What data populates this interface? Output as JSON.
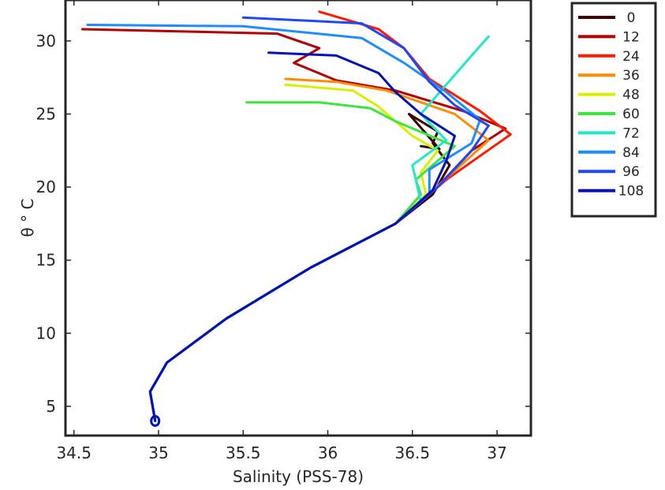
{
  "chart_data": {
    "type": "line",
    "title": "",
    "xlabel": "Salinity (PSS-78)",
    "ylabel": "θ ° C",
    "xlim": [
      34.45,
      37.2
    ],
    "ylim": [
      3.0,
      32.8
    ],
    "xticks": [
      34.5,
      35,
      35.5,
      36,
      36.5,
      37
    ],
    "yticks": [
      5,
      10,
      15,
      20,
      25,
      30
    ],
    "xtick_labels": [
      "34.5",
      "35",
      "35.5",
      "36",
      "36.5",
      "37"
    ],
    "ytick_labels": [
      "5",
      "10",
      "15",
      "20",
      "25",
      "30"
    ],
    "grid": false,
    "legend_position": "outside-right-top",
    "series": [
      {
        "name": "0",
        "color": "#3d0000",
        "points": [
          [
            34.98,
            4.0
          ],
          [
            34.95,
            6.0
          ],
          [
            35.05,
            8.0
          ],
          [
            35.4,
            11.0
          ],
          [
            35.9,
            14.5
          ],
          [
            36.4,
            17.5
          ],
          [
            36.62,
            19.5
          ],
          [
            36.72,
            21.5
          ],
          [
            36.62,
            23.0
          ],
          [
            36.65,
            23.8
          ],
          [
            36.48,
            25.0
          ],
          [
            36.66,
            22.6
          ],
          [
            36.55,
            22.8
          ]
        ]
      },
      {
        "name": "12",
        "color": "#b40000",
        "points": [
          [
            34.98,
            4.0
          ],
          [
            34.95,
            6.0
          ],
          [
            35.05,
            8.0
          ],
          [
            35.4,
            11.0
          ],
          [
            35.9,
            14.5
          ],
          [
            36.4,
            17.5
          ],
          [
            36.63,
            19.8
          ],
          [
            36.85,
            22.5
          ],
          [
            37.05,
            24.0
          ],
          [
            36.8,
            25.2
          ],
          [
            36.4,
            26.6
          ],
          [
            36.05,
            27.3
          ],
          [
            35.8,
            28.5
          ],
          [
            35.95,
            29.5
          ],
          [
            35.7,
            30.5
          ],
          [
            34.55,
            30.8
          ]
        ]
      },
      {
        "name": "24",
        "color": "#ff1a00",
        "points": [
          [
            34.98,
            4.0
          ],
          [
            34.95,
            6.0
          ],
          [
            35.05,
            8.0
          ],
          [
            35.4,
            11.0
          ],
          [
            35.9,
            14.5
          ],
          [
            36.4,
            17.5
          ],
          [
            36.7,
            20.5
          ],
          [
            37.08,
            23.6
          ],
          [
            36.9,
            25.2
          ],
          [
            36.6,
            27.4
          ],
          [
            36.45,
            29.5
          ],
          [
            36.3,
            30.8
          ],
          [
            35.95,
            32.0
          ]
        ]
      },
      {
        "name": "36",
        "color": "#ff8c00",
        "points": [
          [
            34.98,
            4.0
          ],
          [
            34.95,
            6.0
          ],
          [
            35.05,
            8.0
          ],
          [
            35.4,
            11.0
          ],
          [
            35.9,
            14.5
          ],
          [
            36.4,
            17.5
          ],
          [
            36.7,
            20.6
          ],
          [
            36.95,
            23.2
          ],
          [
            36.75,
            25.0
          ],
          [
            36.35,
            26.6
          ],
          [
            36.05,
            27.2
          ],
          [
            35.75,
            27.4
          ]
        ]
      },
      {
        "name": "48",
        "color": "#d8f000",
        "points": [
          [
            34.98,
            4.0
          ],
          [
            34.95,
            6.0
          ],
          [
            35.05,
            8.0
          ],
          [
            35.4,
            11.0
          ],
          [
            35.9,
            14.5
          ],
          [
            36.4,
            17.5
          ],
          [
            36.58,
            19.5
          ],
          [
            36.55,
            21.0
          ],
          [
            36.65,
            22.5
          ],
          [
            36.5,
            23.5
          ],
          [
            36.3,
            25.5
          ],
          [
            36.15,
            26.6
          ],
          [
            35.75,
            27.0
          ]
        ]
      },
      {
        "name": "60",
        "color": "#3ce63c",
        "points": [
          [
            34.98,
            4.0
          ],
          [
            34.95,
            6.0
          ],
          [
            35.05,
            8.0
          ],
          [
            35.4,
            11.0
          ],
          [
            35.9,
            14.5
          ],
          [
            36.4,
            17.5
          ],
          [
            36.55,
            19.5
          ],
          [
            36.52,
            20.5
          ],
          [
            36.75,
            22.8
          ],
          [
            36.4,
            24.5
          ],
          [
            36.25,
            25.4
          ],
          [
            35.95,
            25.8
          ],
          [
            35.52,
            25.8
          ]
        ]
      },
      {
        "name": "72",
        "color": "#20e8c8",
        "points": [
          [
            34.98,
            4.0
          ],
          [
            34.95,
            6.0
          ],
          [
            35.05,
            8.0
          ],
          [
            35.4,
            11.0
          ],
          [
            35.9,
            14.5
          ],
          [
            36.4,
            17.5
          ],
          [
            36.55,
            19.0
          ],
          [
            36.5,
            21.5
          ],
          [
            36.7,
            23.2
          ],
          [
            36.55,
            25.0
          ],
          [
            36.7,
            27.0
          ],
          [
            36.85,
            29.0
          ],
          [
            36.95,
            30.3
          ]
        ]
      },
      {
        "name": "84",
        "color": "#1e8cff",
        "points": [
          [
            34.98,
            4.0
          ],
          [
            34.95,
            6.0
          ],
          [
            35.05,
            8.0
          ],
          [
            35.4,
            11.0
          ],
          [
            35.9,
            14.5
          ],
          [
            36.4,
            17.5
          ],
          [
            36.6,
            19.5
          ],
          [
            36.6,
            21.2
          ],
          [
            36.85,
            23.0
          ],
          [
            36.9,
            24.6
          ],
          [
            36.7,
            26.5
          ],
          [
            36.45,
            28.5
          ],
          [
            36.2,
            30.2
          ],
          [
            35.5,
            31.0
          ],
          [
            34.58,
            31.1
          ]
        ]
      },
      {
        "name": "96",
        "color": "#1e46ff",
        "points": [
          [
            34.98,
            4.0
          ],
          [
            34.95,
            6.0
          ],
          [
            35.05,
            8.0
          ],
          [
            35.4,
            11.0
          ],
          [
            35.9,
            14.5
          ],
          [
            36.4,
            17.5
          ],
          [
            36.65,
            20.0
          ],
          [
            36.85,
            22.5
          ],
          [
            36.95,
            24.2
          ],
          [
            36.75,
            25.6
          ],
          [
            36.6,
            27.2
          ],
          [
            36.45,
            29.5
          ],
          [
            36.2,
            31.2
          ],
          [
            35.5,
            31.6
          ]
        ]
      },
      {
        "name": "108",
        "color": "#0012b4",
        "points": [
          [
            34.98,
            4.0
          ],
          [
            34.95,
            6.0
          ],
          [
            35.05,
            8.0
          ],
          [
            35.4,
            11.0
          ],
          [
            35.9,
            14.5
          ],
          [
            36.4,
            17.5
          ],
          [
            36.62,
            19.8
          ],
          [
            36.7,
            21.8
          ],
          [
            36.75,
            23.5
          ],
          [
            36.55,
            25.0
          ],
          [
            36.4,
            26.5
          ],
          [
            36.3,
            27.8
          ],
          [
            36.05,
            29.0
          ],
          [
            35.65,
            29.2
          ]
        ]
      }
    ]
  }
}
